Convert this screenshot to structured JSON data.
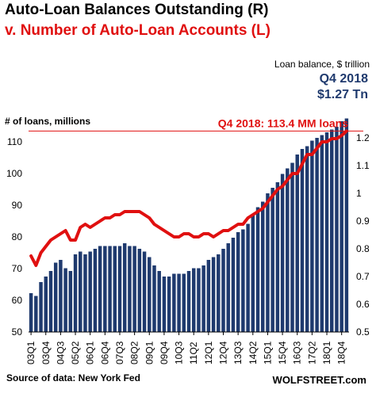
{
  "chart_data": {
    "type": "bar",
    "title": "Auto-Loan Balances Outstanding (R)",
    "subtitle": "v. Number of Auto-Loan Accounts (L)",
    "left_axis_label": "# of loans, millions",
    "right_axis_label": "Loan balance, $ trillion",
    "right_header_1": "Q4 2018",
    "right_header_2": "$1.27 Tn",
    "annotation": "Q4 2018: 113.4 MM loans",
    "source": "Source of data: New York Fed",
    "credit": "WOLFSTREET.com",
    "left_axis": {
      "min": 50,
      "max": 120,
      "ticks": [
        50,
        60,
        70,
        80,
        90,
        100,
        110
      ]
    },
    "right_axis": {
      "min": 0.5,
      "max": 1.3,
      "ticks": [
        0.5,
        0.6,
        0.7,
        0.8,
        0.9,
        1.0,
        1.1,
        1.2
      ],
      "tick_labels": [
        "0.5",
        "0.6",
        "0.7",
        "0.8",
        "0.9",
        "1",
        "1.1",
        "1.2"
      ]
    },
    "reference_line": 113.4,
    "x_tick_labels": [
      "03Q1",
      "03Q4",
      "04Q3",
      "05Q2",
      "06Q1",
      "06Q4",
      "07Q3",
      "08Q2",
      "09Q1",
      "09Q4",
      "10Q3",
      "11Q2",
      "12Q1",
      "12Q4",
      "13Q3",
      "14Q2",
      "15Q1",
      "15Q4",
      "16Q3",
      "17Q2",
      "18Q1",
      "18Q4"
    ],
    "series": [
      {
        "name": "Auto-Loan Balances Outstanding (R)",
        "kind": "bar",
        "axis": "right",
        "color": "#1f3a6e",
        "values": [
          0.64,
          0.63,
          0.68,
          0.7,
          0.72,
          0.75,
          0.76,
          0.73,
          0.72,
          0.78,
          0.79,
          0.78,
          0.79,
          0.8,
          0.81,
          0.81,
          0.81,
          0.81,
          0.81,
          0.82,
          0.81,
          0.81,
          0.8,
          0.79,
          0.77,
          0.74,
          0.72,
          0.7,
          0.7,
          0.71,
          0.71,
          0.71,
          0.72,
          0.73,
          0.73,
          0.74,
          0.76,
          0.77,
          0.78,
          0.8,
          0.82,
          0.84,
          0.86,
          0.87,
          0.89,
          0.92,
          0.95,
          0.97,
          1.0,
          1.02,
          1.04,
          1.07,
          1.09,
          1.11,
          1.14,
          1.16,
          1.17,
          1.19,
          1.2,
          1.21,
          1.22,
          1.23,
          1.24,
          1.26,
          1.27
        ]
      },
      {
        "name": "Number of Auto-Loan Accounts (L)",
        "kind": "line",
        "axis": "left",
        "color": "#e01010",
        "values": [
          74,
          71,
          75,
          77,
          79,
          80,
          81,
          82,
          79,
          79,
          83,
          84,
          83,
          84,
          85,
          86,
          86,
          87,
          87,
          88,
          88,
          88,
          88,
          87,
          86,
          84,
          83,
          82,
          81,
          80,
          80,
          81,
          81,
          80,
          80,
          81,
          81,
          80,
          81,
          82,
          82,
          83,
          84,
          84,
          86,
          87,
          88,
          89,
          91,
          93,
          95,
          96,
          98,
          100,
          100,
          103,
          106,
          106,
          108,
          110,
          110,
          111,
          111,
          112,
          113.4
        ]
      }
    ]
  }
}
